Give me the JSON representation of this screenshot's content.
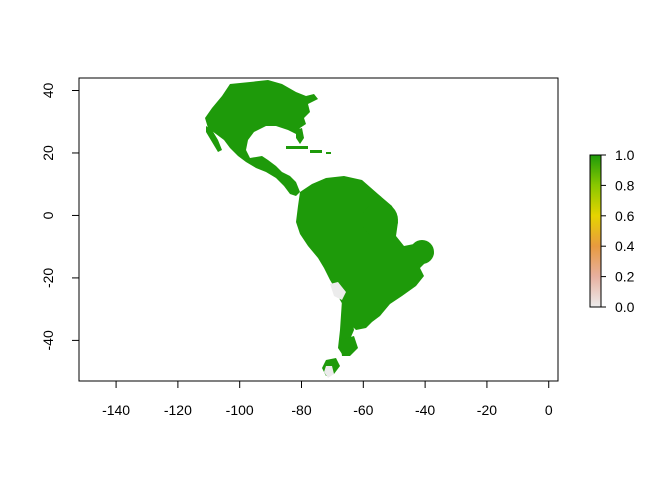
{
  "map": {
    "x_ticks": [
      -140,
      -120,
      -100,
      -80,
      -60,
      -40,
      -20,
      0
    ],
    "y_ticks": [
      40,
      20,
      0,
      -20,
      -40
    ],
    "xlim": [
      -152,
      3
    ],
    "ylim": [
      -53,
      44
    ],
    "land_color": "#1e9a0a",
    "low_color": "#ececec"
  },
  "legend": {
    "ticks": [
      "0.0",
      "0.2",
      "0.4",
      "0.6",
      "0.8",
      "1.0"
    ],
    "colors": [
      "#ececec",
      "#e8b0a0",
      "#e89a40",
      "#e6d400",
      "#8ac800",
      "#1e9a0a"
    ]
  }
}
